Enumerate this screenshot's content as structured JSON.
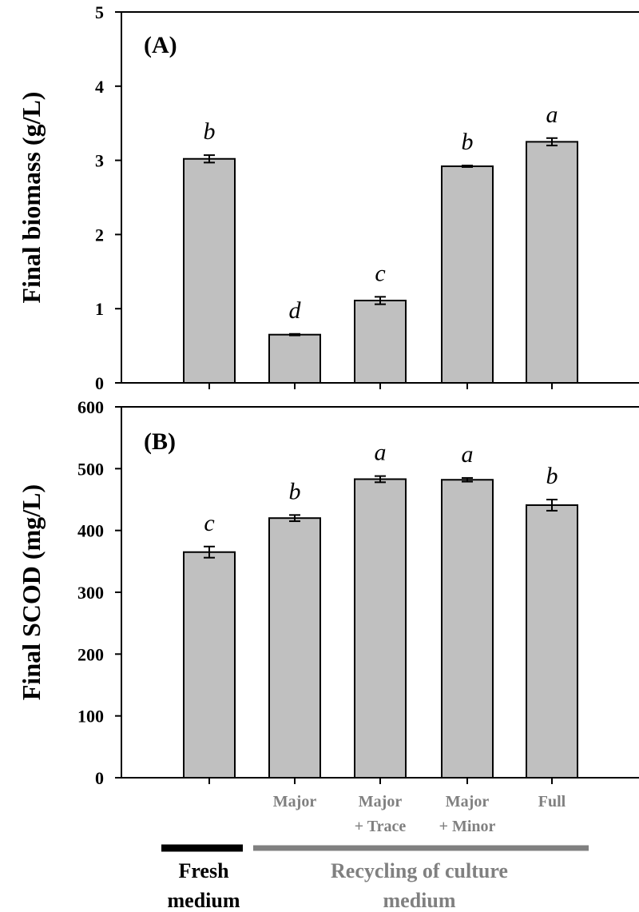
{
  "chart_data": [
    {
      "type": "bar",
      "panel_label": "(A)",
      "ylabel": "Final biomass (g/L)",
      "ylim": [
        0,
        5
      ],
      "yticks": [
        "0",
        "1",
        "2",
        "3",
        "4",
        "5"
      ],
      "categories": [
        "",
        "Major",
        "Major\n+ Trace",
        "Major\n+ Minor",
        "Full"
      ],
      "values": [
        3.02,
        0.65,
        1.11,
        2.92,
        3.25
      ],
      "errors": [
        0.05,
        0.01,
        0.05,
        0.01,
        0.05
      ],
      "significance": [
        "b",
        "d",
        "c",
        "b",
        "a"
      ],
      "bar_color": "#c0c0c0"
    },
    {
      "type": "bar",
      "panel_label": "(B)",
      "ylabel": "Final SCOD (mg/L)",
      "ylim": [
        0,
        600
      ],
      "yticks": [
        "0",
        "100",
        "200",
        "300",
        "400",
        "500",
        "600"
      ],
      "categories": [
        "",
        "Major",
        "Major\n+ Trace",
        "Major\n+ Minor",
        "Full"
      ],
      "values": [
        365,
        420,
        483,
        482,
        441
      ],
      "errors": [
        9,
        5,
        5,
        3,
        9
      ],
      "significance": [
        "c",
        "b",
        "a",
        "a",
        "b"
      ],
      "bar_color": "#c0c0c0"
    }
  ],
  "category_labels": {
    "cat1": "Major",
    "cat2_line1": "Major",
    "cat2_line2": "+ Trace",
    "cat3_line1": "Major",
    "cat3_line2": "+ Minor",
    "cat4": "Full"
  },
  "groups": {
    "fresh": {
      "line1": "Fresh",
      "line2": "medium",
      "color": "#000000"
    },
    "recycling": {
      "line1": "Recycling of culture",
      "line2": "medium",
      "color": "#808080"
    }
  }
}
